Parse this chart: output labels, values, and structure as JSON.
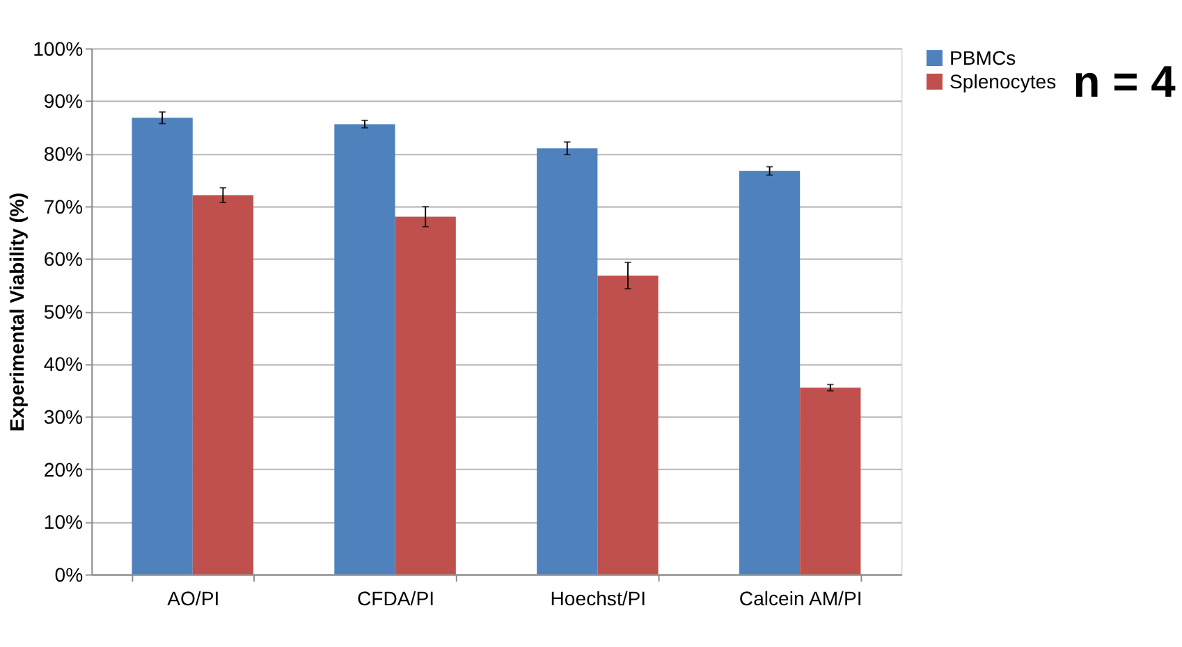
{
  "chart_data": {
    "type": "bar",
    "ylabel": "Experimental Viability (%)",
    "categories": [
      "AO/PI",
      "CFDA/PI",
      "Hoechst/PI",
      "Calcein AM/PI"
    ],
    "series": [
      {
        "name": "PBMCs",
        "color": "#4f81bd",
        "values": [
          86.8,
          85.6,
          81.0,
          76.7
        ],
        "errors": [
          1.1,
          0.7,
          1.2,
          0.8
        ]
      },
      {
        "name": "Splenocytes",
        "color": "#c0504d",
        "values": [
          72.1,
          68.0,
          56.8,
          35.5
        ],
        "errors": [
          1.4,
          1.9,
          2.5,
          0.6
        ]
      }
    ],
    "ylim": [
      0,
      100
    ],
    "yticks": [
      {
        "value": 0,
        "label": "0%"
      },
      {
        "value": 10,
        "label": "10%"
      },
      {
        "value": 20,
        "label": "20%"
      },
      {
        "value": 30,
        "label": "30%"
      },
      {
        "value": 40,
        "label": "40%"
      },
      {
        "value": 50,
        "label": "50%"
      },
      {
        "value": 60,
        "label": "60%"
      },
      {
        "value": 70,
        "label": "70%"
      },
      {
        "value": 80,
        "label": "80%"
      },
      {
        "value": 90,
        "label": "90%"
      },
      {
        "value": 100,
        "label": "100%"
      }
    ],
    "grid": "y",
    "legend": "right",
    "annotations": [
      "n = 4"
    ]
  }
}
